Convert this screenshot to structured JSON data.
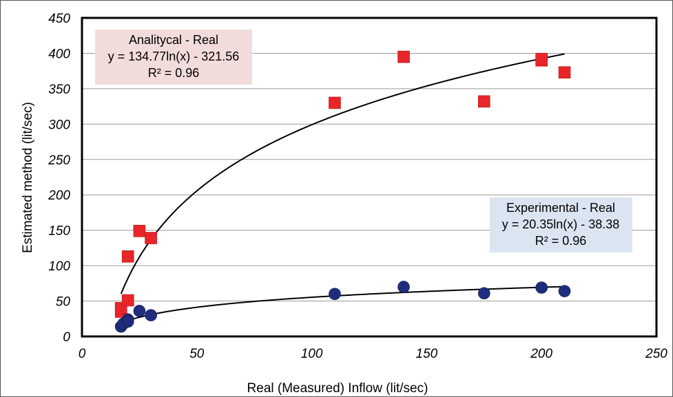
{
  "chart_data": {
    "type": "scatter",
    "xlabel": "Real (Measured) Inflow (lit/sec)",
    "ylabel": "Estimated method (lit/sec)",
    "xlim": [
      0,
      250
    ],
    "ylim": [
      0,
      450
    ],
    "x_ticks": [
      0,
      50,
      100,
      150,
      200,
      250
    ],
    "y_ticks": [
      0,
      50,
      100,
      150,
      200,
      250,
      300,
      350,
      400,
      450
    ],
    "grid": "horizontal",
    "series": [
      {
        "name": "Analitycal - Real",
        "marker": "square",
        "color": "#e8262a",
        "points": [
          [
            17,
            35
          ],
          [
            17,
            40
          ],
          [
            20,
            113
          ],
          [
            20,
            51
          ],
          [
            25,
            149
          ],
          [
            30,
            139
          ],
          [
            110,
            330
          ],
          [
            140,
            395
          ],
          [
            175,
            332
          ],
          [
            200,
            390
          ],
          [
            200,
            392
          ],
          [
            210,
            373
          ]
        ],
        "trendline": {
          "type": "log",
          "a": 134.77,
          "b": -321.56,
          "x_range": [
            17,
            210
          ]
        },
        "label": {
          "title": "Analitycal - Real",
          "equation": "y = 134.77ln(x) - 321.56",
          "r2": "R² = 0.96",
          "background": "#f2dcdb"
        }
      },
      {
        "name": "Experimental - Real",
        "marker": "circle",
        "color": "#1f2d7c",
        "points": [
          [
            17,
            14
          ],
          [
            18,
            18
          ],
          [
            20,
            24
          ],
          [
            20,
            21
          ],
          [
            25,
            36
          ],
          [
            30,
            30
          ],
          [
            110,
            60
          ],
          [
            140,
            70
          ],
          [
            175,
            61
          ],
          [
            200,
            69
          ],
          [
            210,
            64
          ]
        ],
        "trendline": {
          "type": "log",
          "a": 20.35,
          "b": -38.38,
          "x_range": [
            17,
            210
          ]
        },
        "label": {
          "title": "Experimental - Real",
          "equation": "y = 20.35ln(x) - 38.38",
          "r2": "R² = 0.96",
          "background": "#dbe5f1"
        }
      }
    ]
  }
}
